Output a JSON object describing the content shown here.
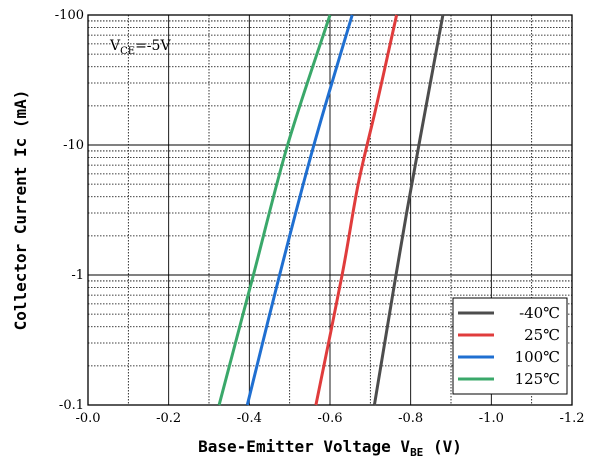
{
  "chart_data": {
    "type": "line",
    "title": "",
    "xlabel": "Base-Emitter Voltage V",
    "xlabel_sub": "BE",
    "xlabel_unit": " (V)",
    "ylabel": "Collector  Current Ic (mA)",
    "xlim": [
      0.0,
      -1.2
    ],
    "ylim": [
      -0.1,
      -100
    ],
    "y_scale": "log",
    "grid": true,
    "legend_position": "bottom-right",
    "x_ticks": [
      "-0.0",
      "-0.2",
      "-0.4",
      "-0.6",
      "-0.8",
      "-1.0",
      "-1.2"
    ],
    "y_ticks": [
      "-0.1",
      "-1",
      "-10",
      "-100"
    ],
    "annotation": {
      "prefix": "V",
      "sub": "CE",
      "suffix": "=-5V"
    },
    "series": [
      {
        "name": "-40℃",
        "color": "#4d4d4d",
        "x": [
          -0.71,
          -0.79,
          -0.88
        ],
        "y": [
          -0.1,
          -3,
          -100
        ]
      },
      {
        "name": "25℃",
        "color": "#e03c3c",
        "x": [
          -0.565,
          -0.63,
          -0.67,
          -0.715,
          -0.765
        ],
        "y": [
          -0.1,
          -1,
          -5,
          -20,
          -100
        ]
      },
      {
        "name": "100℃",
        "color": "#1f6fd1",
        "x": [
          -0.395,
          -0.475,
          -0.56,
          -0.655
        ],
        "y": [
          -0.1,
          -1,
          -10,
          -100
        ]
      },
      {
        "name": "125℃",
        "color": "#3aa86a",
        "x": [
          -0.325,
          -0.41,
          -0.495,
          -0.6
        ],
        "y": [
          -0.1,
          -1,
          -10,
          -100
        ]
      }
    ]
  }
}
